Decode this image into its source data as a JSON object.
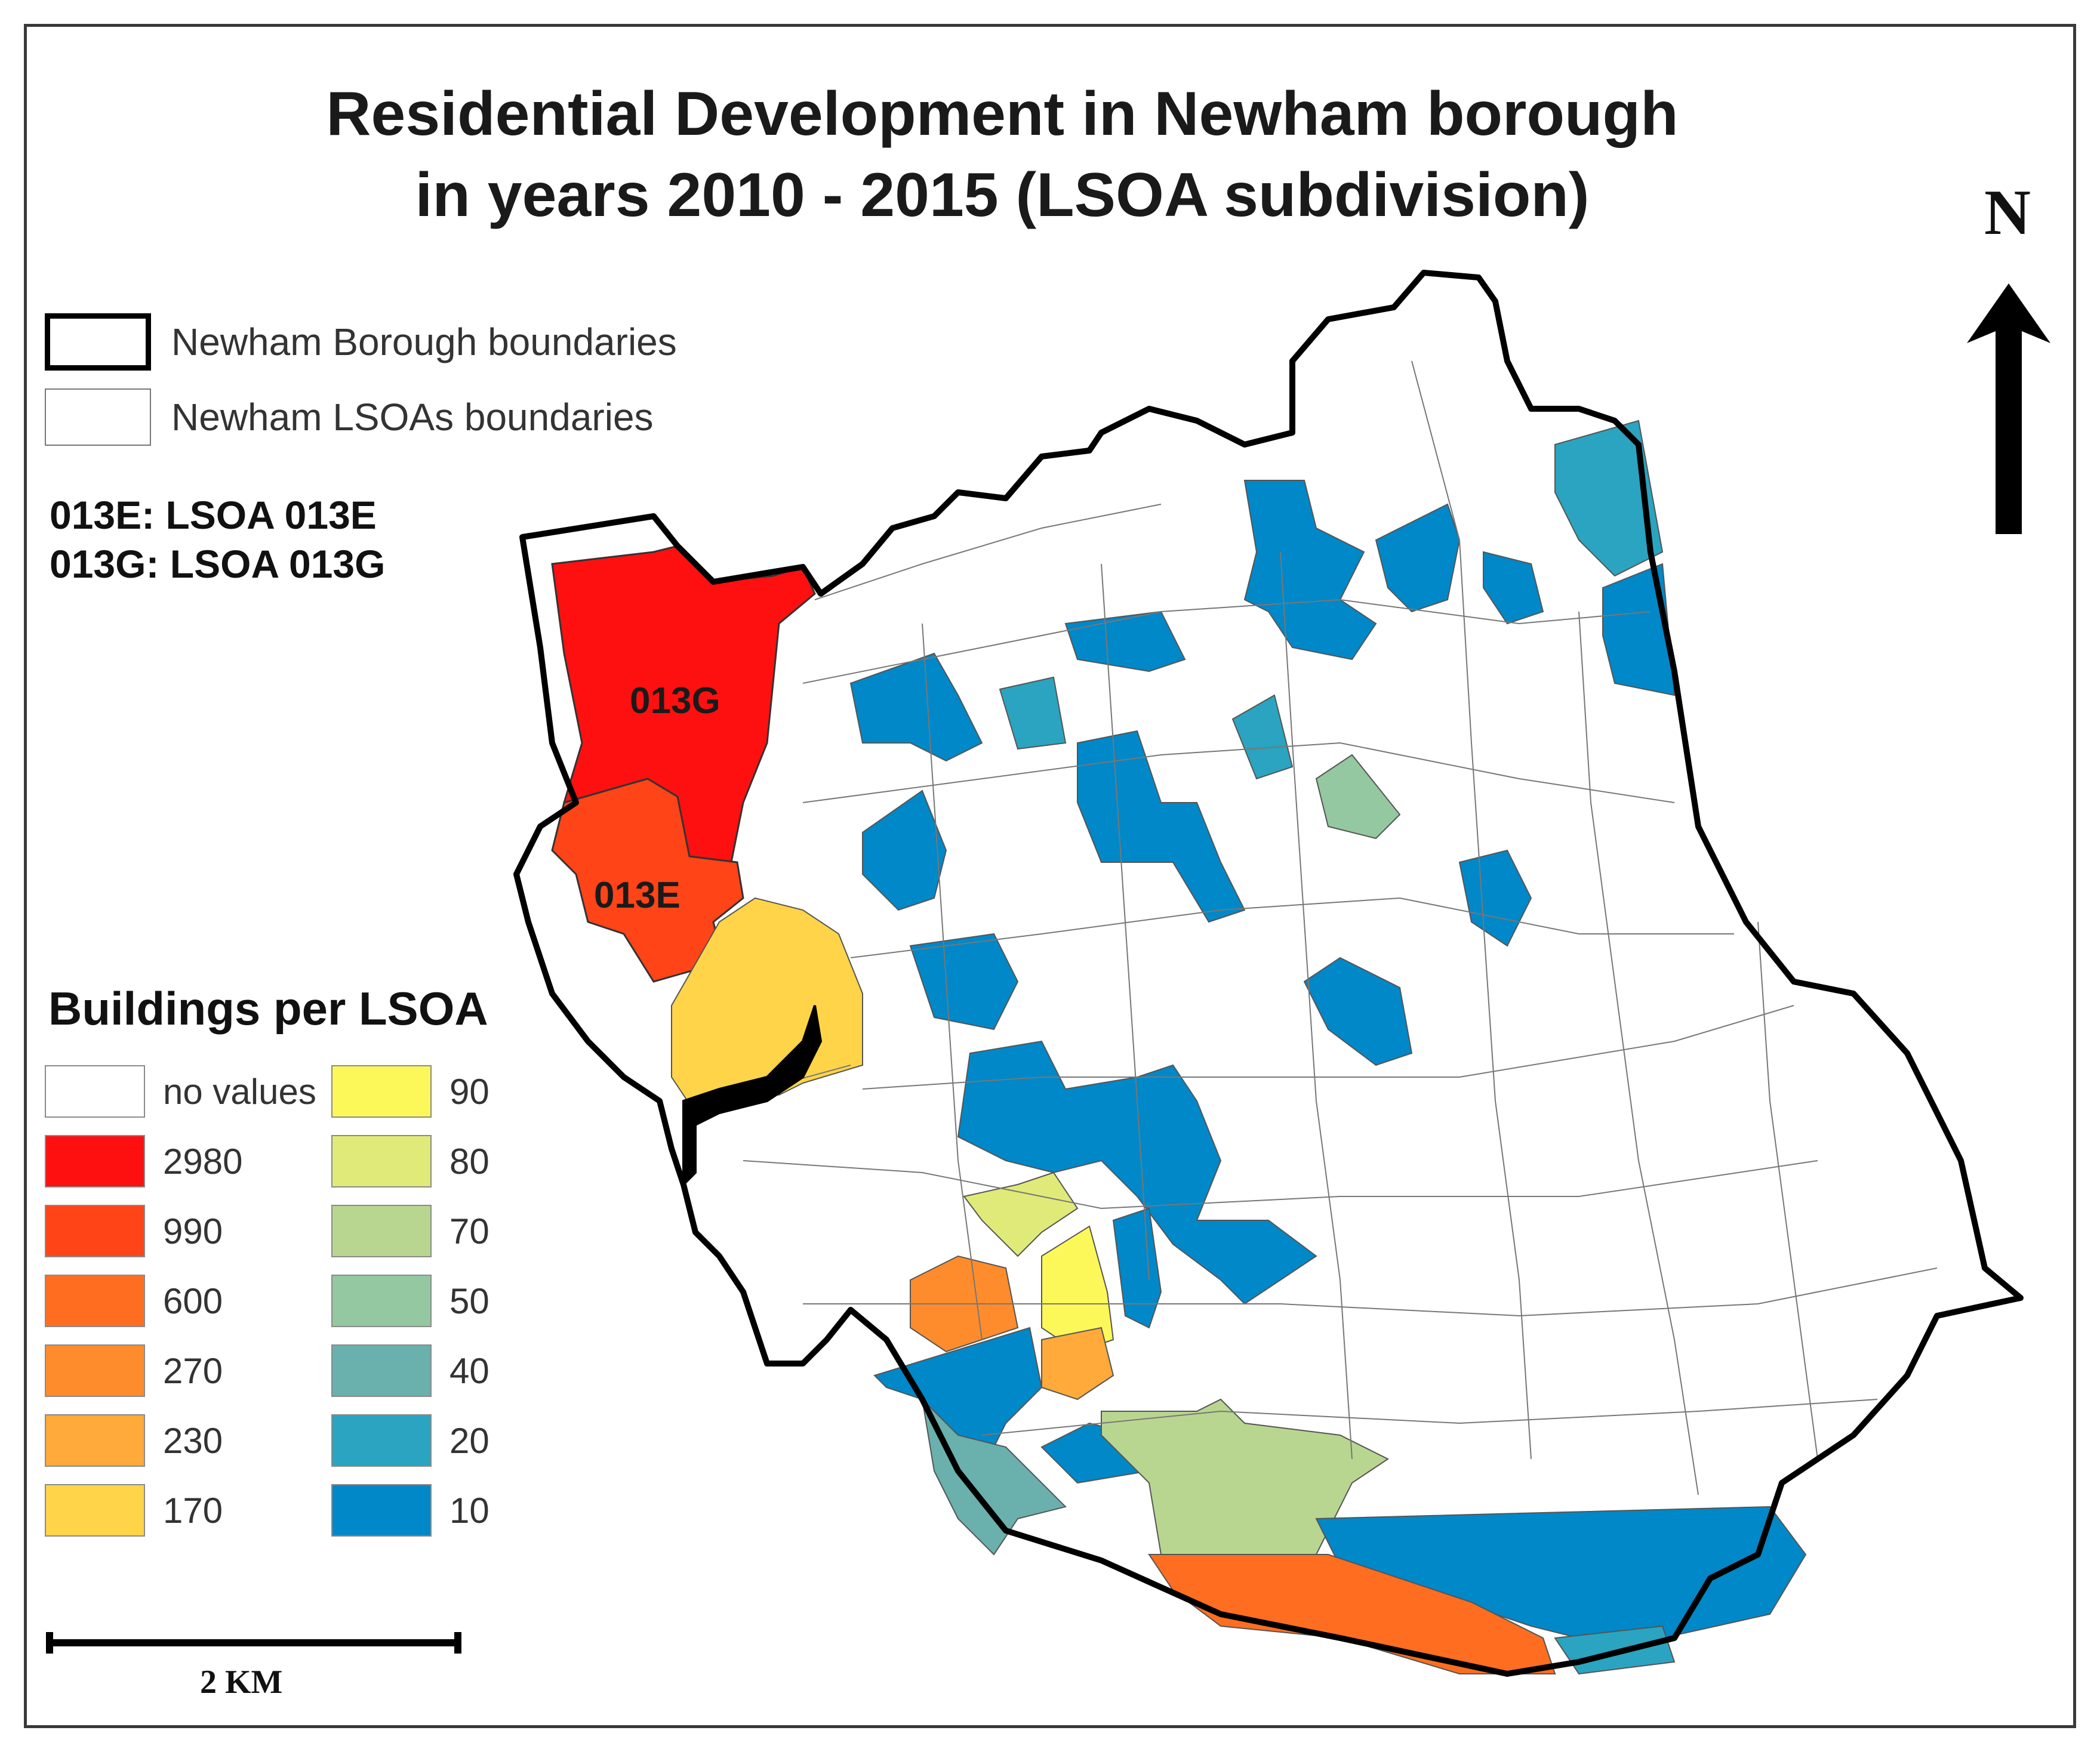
{
  "title": {
    "line1": "Residential Development in Newham borough",
    "line2": "in years 2010 - 2015 (LSOA subdivision)"
  },
  "boundary_legend": {
    "borough": "Newham Borough boundaries",
    "lsoa": "Newham LSOAs boundaries"
  },
  "codes": {
    "line1": "013E:  LSOA 013E",
    "line2": "013G:  LSOA 013G"
  },
  "legend": {
    "title": "Buildings per LSOA",
    "classes_left": [
      {
        "label": "no values",
        "color": "#ffffff"
      },
      {
        "label": "2980",
        "color": "#ff1010"
      },
      {
        "label": "990",
        "color": "#ff4418"
      },
      {
        "label": "600",
        "color": "#ff6e20"
      },
      {
        "label": "270",
        "color": "#ff8c2c"
      },
      {
        "label": "230",
        "color": "#ffaa3a"
      },
      {
        "label": "170",
        "color": "#ffd448"
      }
    ],
    "classes_right": [
      {
        "label": "90",
        "color": "#fdf85a"
      },
      {
        "label": "80",
        "color": "#e0ea78"
      },
      {
        "label": "70",
        "color": "#b8d690"
      },
      {
        "label": "50",
        "color": "#94c8a0"
      },
      {
        "label": "40",
        "color": "#6ab0ac"
      },
      {
        "label": "20",
        "color": "#2aa4c0"
      },
      {
        "label": "10",
        "color": "#0088c8"
      }
    ]
  },
  "map_labels": {
    "lsoa_013g": "013G",
    "lsoa_013e": "013E"
  },
  "north_arrow": {
    "label": "N"
  },
  "scale_bar": {
    "label": "2 KM"
  }
}
